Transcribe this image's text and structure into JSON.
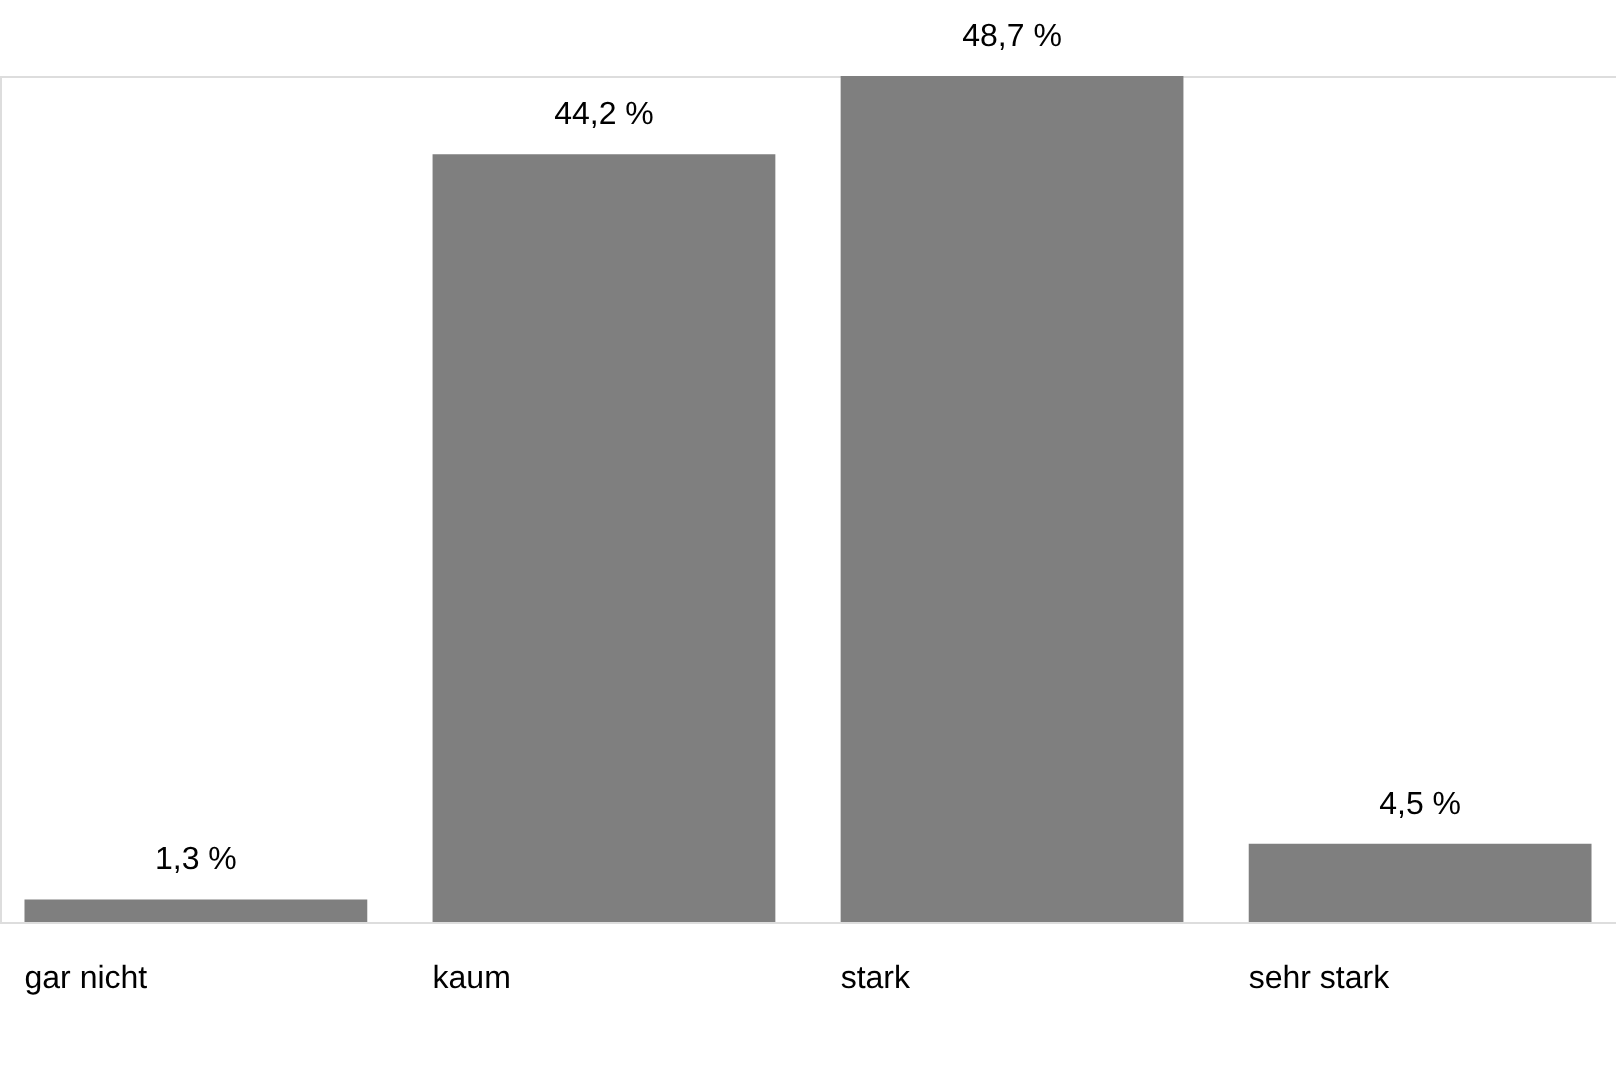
{
  "chart_data": {
    "type": "bar",
    "categories": [
      "gar nicht",
      "kaum",
      "stark",
      "sehr stark"
    ],
    "values": [
      1.3,
      44.2,
      48.7,
      4.5
    ],
    "value_labels": [
      "1,3 %",
      "44,2 %",
      "48,7 %",
      "4,5 %"
    ],
    "color": "#7f7f7f",
    "grid": false
  }
}
